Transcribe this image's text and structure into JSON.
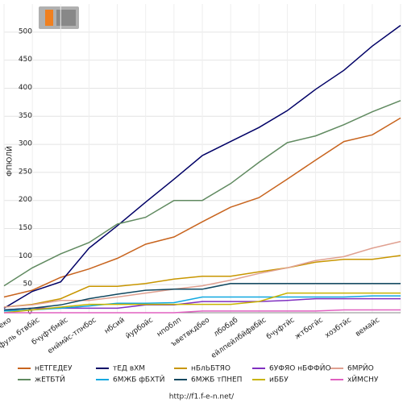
{
  "chart_data": {
    "type": "line",
    "ylabel": "ФПЮЛЙ",
    "footer": "http://f1.f-e-n.net/",
    "categories": [
      "ввитеко",
      "вхудйфуль бтвбйс",
      "бчуфтбмйс",
      "енймйс-тпнбос",
      "нбсий",
      "йурбойс",
      "нпоблп",
      "ъветвкдбео",
      "лбобдб",
      "ейлпейлбйфвбйс",
      "бчуфтйс",
      "жтбогйс",
      "хозбтйс",
      "вемайс",
      null
    ],
    "ylim": [
      0,
      550
    ],
    "yticks": [
      0,
      50,
      100,
      150,
      200,
      250,
      300,
      350,
      400,
      450,
      500
    ],
    "grid": true,
    "series": [
      {
        "name": "нЕТГЕДЕУ",
        "color": "#c8641e",
        "values": [
          28,
          40,
          63,
          78,
          97,
          122,
          135,
          162,
          188,
          205,
          238,
          272,
          305,
          317,
          347
        ]
      },
      {
        "name": "тЕД вХМ",
        "color": "#000066",
        "values": [
          8,
          38,
          55,
          115,
          155,
          197,
          238,
          280,
          305,
          330,
          360,
          398,
          432,
          475,
          512
        ]
      },
      {
        "name": "нБлЬБТЯО",
        "color": "#c89600",
        "values": [
          10,
          15,
          25,
          47,
          47,
          52,
          60,
          65,
          65,
          73,
          80,
          90,
          95,
          95,
          102
        ]
      },
      {
        "name": "6УФЯО нБФФЙО",
        "color": "#8030c0",
        "values": [
          5,
          8,
          8,
          8,
          8,
          14,
          14,
          20,
          20,
          20,
          22,
          25,
          25,
          25,
          25
        ]
      },
      {
        "name": "6МРЙО",
        "color": "#e0a090",
        "values": [
          10,
          14,
          22,
          22,
          28,
          35,
          42,
          48,
          58,
          70,
          80,
          93,
          100,
          115,
          127
        ]
      },
      {
        "name": "жЕТБТЙ",
        "color": "#608a60",
        "values": [
          48,
          80,
          105,
          125,
          158,
          170,
          200,
          200,
          230,
          268,
          303,
          315,
          335,
          358,
          378
        ]
      },
      {
        "name": "6МЖБ фБХТЙ",
        "color": "#10a8e0",
        "values": [
          3,
          5,
          8,
          12,
          17,
          17,
          18,
          28,
          28,
          28,
          28,
          28,
          28,
          30,
          30
        ]
      },
      {
        "name": "6МЖБ тПНЕП",
        "color": "#104860",
        "values": [
          5,
          8,
          14,
          25,
          33,
          40,
          42,
          42,
          52,
          52,
          52,
          52,
          52,
          52,
          52
        ]
      },
      {
        "name": "иББУ",
        "color": "#c8b400",
        "values": [
          0,
          5,
          10,
          15,
          15,
          15,
          15,
          15,
          15,
          20,
          35,
          35,
          35,
          35,
          35
        ]
      },
      {
        "name": "хЙМСНУ",
        "color": "#e060c0",
        "values": [
          0,
          0,
          0,
          0,
          0,
          0,
          0,
          3,
          3,
          3,
          3,
          3,
          5,
          5,
          5
        ]
      }
    ]
  }
}
